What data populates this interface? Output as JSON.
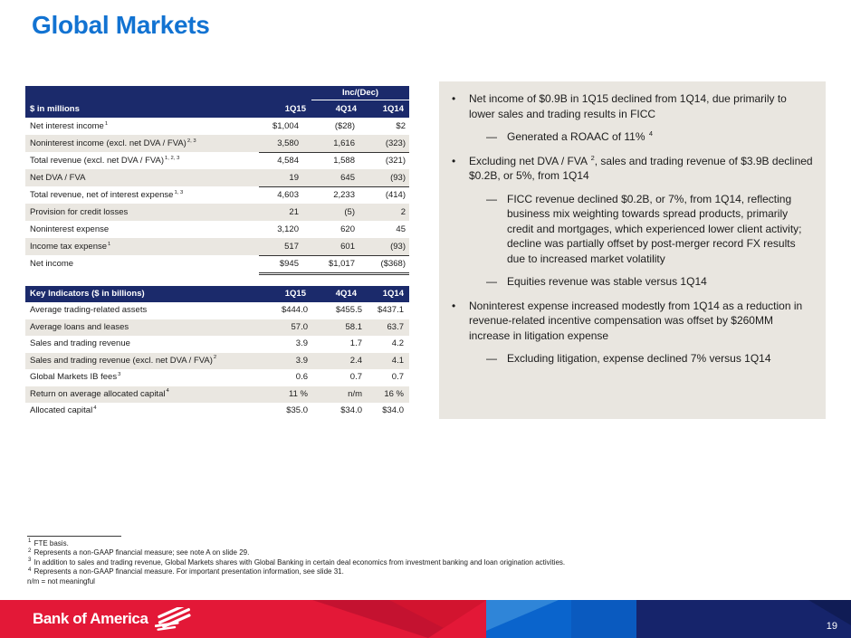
{
  "title": "Global Markets",
  "colors": {
    "header_navy": "#1b2a6b",
    "title_blue": "#1273d2",
    "row_stripe": "#eae7e1",
    "panel_bg": "#e9e6e0",
    "footer_red": "#e31837",
    "footer_red_dark": "#c41230",
    "footer_blue_light": "#2f85d8",
    "footer_blue": "#0a64cc",
    "footer_blue_mid": "#0a5abf",
    "footer_navy": "#16246b"
  },
  "income_table": {
    "group_header": "Inc/(Dec)",
    "header": [
      "$ in millions",
      "1Q15",
      "4Q14",
      "1Q14"
    ],
    "rows": [
      {
        "label": "Net interest income",
        "sup": "1",
        "v": [
          "$1,004",
          "($28)",
          "$2"
        ]
      },
      {
        "label": "Noninterest income (excl. net DVA / FVA)",
        "sup": "2, 3",
        "v": [
          "3,580",
          "1,616",
          "(323)"
        ],
        "line": "single"
      },
      {
        "label": "Total revenue (excl. net DVA / FVA)",
        "sup": "1, 2, 3",
        "v": [
          "4,584",
          "1,588",
          "(321)"
        ]
      },
      {
        "label": "Net DVA / FVA",
        "sup": "",
        "v": [
          "19",
          "645",
          "(93)"
        ],
        "line": "single"
      },
      {
        "label": "Total revenue, net of interest expense",
        "sup": "1, 3",
        "v": [
          "4,603",
          "2,233",
          "(414)"
        ]
      },
      {
        "label": "Provision for credit losses",
        "sup": "",
        "v": [
          "21",
          "(5)",
          "2"
        ]
      },
      {
        "label": "Noninterest expense",
        "sup": "",
        "v": [
          "3,120",
          "620",
          "45"
        ]
      },
      {
        "label": "Income tax expense",
        "sup": "1",
        "v": [
          "517",
          "601",
          "(93)"
        ],
        "line": "single"
      },
      {
        "label": "Net income",
        "sup": "",
        "v": [
          "$945",
          "$1,017",
          "($368)"
        ],
        "line": "double"
      }
    ]
  },
  "indicators_table": {
    "header": [
      "Key Indicators ($ in billions)",
      "1Q15",
      "4Q14",
      "1Q14"
    ],
    "rows": [
      {
        "label": "Average trading-related assets",
        "sup": "",
        "v": [
          "$444.0",
          "$455.5",
          "$437.1"
        ]
      },
      {
        "label": "Average loans and leases",
        "sup": "",
        "v": [
          "57.0",
          "58.1",
          "63.7"
        ]
      },
      {
        "label": "Sales and trading revenue",
        "sup": "",
        "v": [
          "3.9",
          "1.7",
          "4.2"
        ]
      },
      {
        "label": "Sales and trading revenue (excl. net DVA / FVA)",
        "sup": "2",
        "v": [
          "3.9",
          "2.4",
          "4.1"
        ]
      },
      {
        "label": "Global Markets IB fees",
        "sup": "3",
        "v": [
          "0.6",
          "0.7",
          "0.7"
        ]
      },
      {
        "label": "Return on average allocated capital",
        "sup": "4",
        "v": [
          "11 %",
          "n/m",
          "16 %"
        ]
      },
      {
        "label": "Allocated capital",
        "sup": "4",
        "v": [
          "$35.0",
          "$34.0",
          "$34.0"
        ]
      }
    ]
  },
  "panel": {
    "markers": [
      "•",
      "—"
    ],
    "bullets": [
      {
        "level": 1,
        "segments": [
          {
            "t": "Net income of $0.9B in 1Q15 declined from 1Q14, due primarily to lower sales and trading results in FICC"
          }
        ]
      },
      {
        "level": 2,
        "segments": [
          {
            "t": "Generated a ROAAC of 11% "
          },
          {
            "sup": "4"
          }
        ]
      },
      {
        "level": 1,
        "segments": [
          {
            "t": "Excluding net DVA / FVA "
          },
          {
            "sup": "2"
          },
          {
            "t": ", sales and trading revenue of $3.9B declined $0.2B, or 5%, from 1Q14"
          }
        ]
      },
      {
        "level": 2,
        "segments": [
          {
            "t": "FICC revenue declined $0.2B, or 7%, from 1Q14, reflecting business mix weighting towards spread products, primarily credit and mortgages, which experienced lower client activity; decline was partially offset by post-merger record FX results due to increased market volatility"
          }
        ]
      },
      {
        "level": 2,
        "segments": [
          {
            "t": "Equities revenue was stable versus 1Q14"
          }
        ]
      },
      {
        "level": 1,
        "segments": [
          {
            "t": "Noninterest expense increased modestly from 1Q14 as a reduction in revenue-related incentive compensation was offset by $260MM increase in litigation expense"
          }
        ]
      },
      {
        "level": 2,
        "segments": [
          {
            "t": "Excluding litigation, expense declined 7% versus 1Q14"
          }
        ]
      }
    ]
  },
  "footnotes": [
    {
      "sup": "1",
      "text": "FTE basis."
    },
    {
      "sup": "2",
      "text": "Represents a non-GAAP financial measure; see note A on slide 29."
    },
    {
      "sup": "3",
      "text": "In addition to sales and trading revenue, Global Markets shares with Global Banking in certain deal economics from investment banking and loan origination activities."
    },
    {
      "sup": "4",
      "text": "Represents a non-GAAP financial measure. For important presentation information, see slide 31."
    },
    {
      "sup": "",
      "text": "n/m = not meaningful"
    }
  ],
  "footer": {
    "brand": "Bank of America",
    "page_number": "19"
  }
}
